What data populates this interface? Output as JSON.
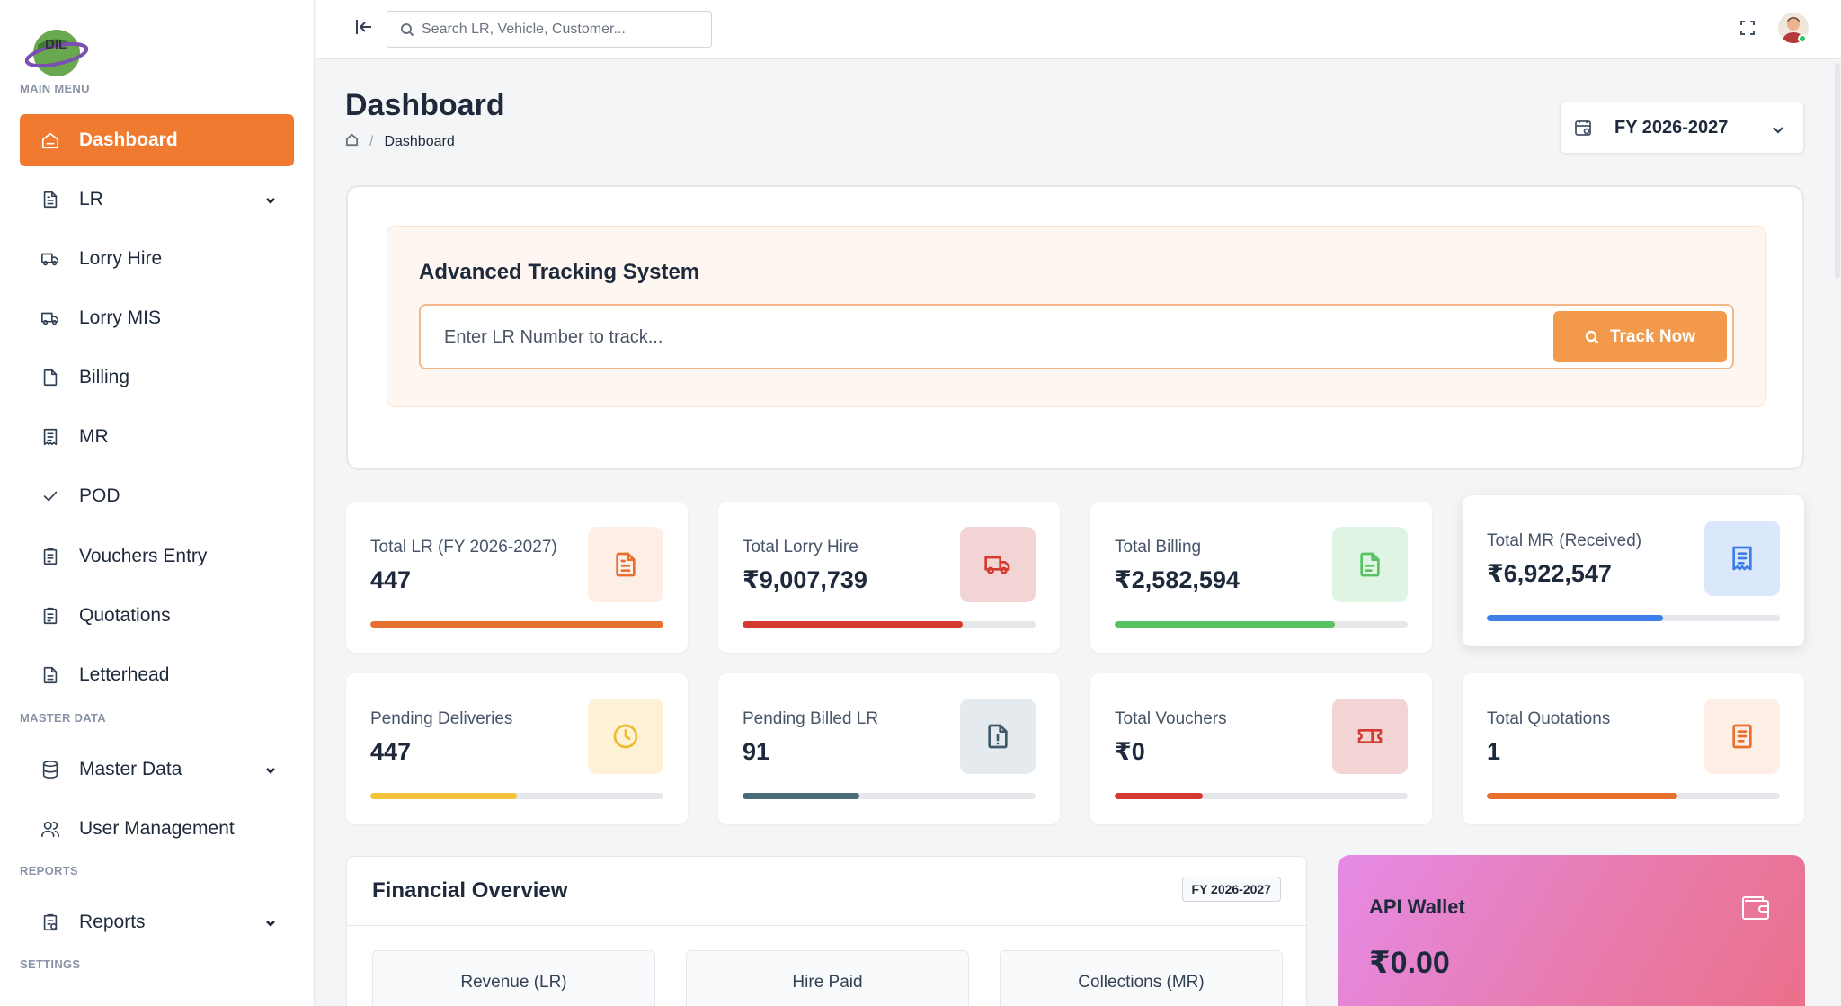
{
  "sidebar": {
    "logo_text": "DIL",
    "sections": {
      "main": "MAIN MENU",
      "master": "MASTER DATA",
      "reports": "REPORTS",
      "settings": "SETTINGS"
    },
    "items": {
      "dashboard": "Dashboard",
      "lr": "LR",
      "lorry_hire": "Lorry Hire",
      "lorry_mis": "Lorry MIS",
      "billing": "Billing",
      "mr": "MR",
      "pod": "POD",
      "vouchers": "Vouchers Entry",
      "quotations": "Quotations",
      "letterhead": "Letterhead",
      "master_data": "Master Data",
      "user_mgmt": "User Management",
      "reports": "Reports"
    }
  },
  "topbar": {
    "search_placeholder": "Search LR, Vehicle, Customer..."
  },
  "header": {
    "title": "Dashboard",
    "breadcrumb_current": "Dashboard",
    "fy_selected": "FY 2026-2027"
  },
  "tracking": {
    "title": "Advanced Tracking System",
    "input_placeholder": "Enter LR Number to track...",
    "button_label": "Track Now"
  },
  "stats": [
    {
      "label": "Total LR (FY 2026-2027)",
      "value": "447",
      "progress": 1.0,
      "color": "#e8702f",
      "icon": "file-text-icon"
    },
    {
      "label": "Total Lorry Hire",
      "value": "₹9,007,739",
      "progress": 0.75,
      "color": "#d43a2f",
      "icon": "truck-icon"
    },
    {
      "label": "Total Billing",
      "value": "₹2,582,594",
      "progress": 0.75,
      "color": "#58c260",
      "icon": "file-icon"
    },
    {
      "label": "Total MR (Received)",
      "value": "₹6,922,547",
      "progress": 0.6,
      "color": "#3d7ee9",
      "icon": "receipt-icon"
    },
    {
      "label": "Pending Deliveries",
      "value": "447",
      "progress": 0.5,
      "color": "#f5c33b",
      "icon": "clock-icon"
    },
    {
      "label": "Pending Billed LR",
      "value": "91",
      "progress": 0.4,
      "color": "#4a6b78",
      "icon": "file-alert-icon"
    },
    {
      "label": "Total Vouchers",
      "value": "₹0",
      "progress": 0.3,
      "color": "#d43a2f",
      "icon": "ticket-icon"
    },
    {
      "label": "Total Quotations",
      "value": "1",
      "progress": 0.65,
      "color": "#e8702f",
      "icon": "quote-doc-icon"
    }
  ],
  "financial": {
    "title": "Financial Overview",
    "badge": "FY 2026-2027",
    "boxes": [
      {
        "label": "Revenue (LR)",
        "color": "#e8702f"
      },
      {
        "label": "Hire Paid",
        "color": "#d43a2f"
      },
      {
        "label": "Collections (MR)",
        "color": "#58c260"
      }
    ]
  },
  "wallet": {
    "title": "API Wallet",
    "value": "₹0.00"
  }
}
